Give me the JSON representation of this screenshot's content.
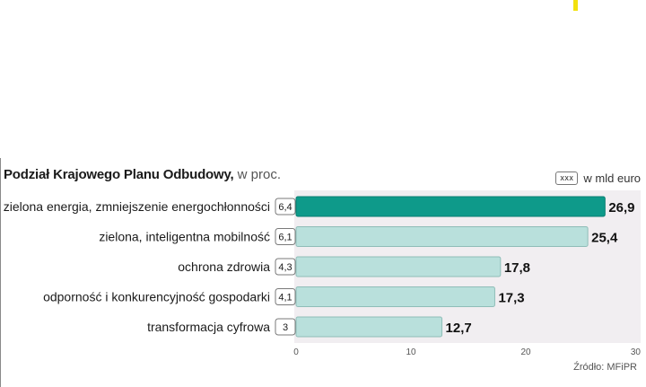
{
  "title": {
    "strong": "Podział Krajowego Planu Odbudowy,",
    "rest": " w proc."
  },
  "legend": {
    "box_label": "xxx",
    "text": "w mld euro"
  },
  "source": "Źródło: MFiPR",
  "colors": {
    "highlight_bar": "#0e9a8a",
    "bar": "#b9e0dc",
    "bar_stroke": "#8fbdb8",
    "plot_bg": "#f1eef1"
  },
  "chart_data": {
    "type": "bar",
    "orientation": "horizontal",
    "title": "Podział Krajowego Planu Odbudowy, w proc.",
    "xlim": [
      0,
      30
    ],
    "xticks": [
      0,
      10,
      20,
      30
    ],
    "categories": [
      "zielona energia, zmniejszenie energochłonności",
      "zielona, inteligentna mobilność",
      "ochrona zdrowia",
      "odporność i konkurencyjność gospodarki",
      "transformacja cyfrowa"
    ],
    "values": [
      26.9,
      25.4,
      17.8,
      17.3,
      12.7
    ],
    "value_labels": [
      "26,9",
      "25,4",
      "17,8",
      "17,3",
      "12,7"
    ],
    "amounts_bn_eur": [
      "6,4",
      "6,1",
      "4,3",
      "4,1",
      "3"
    ],
    "highlighted_index": 0,
    "grid": false
  }
}
